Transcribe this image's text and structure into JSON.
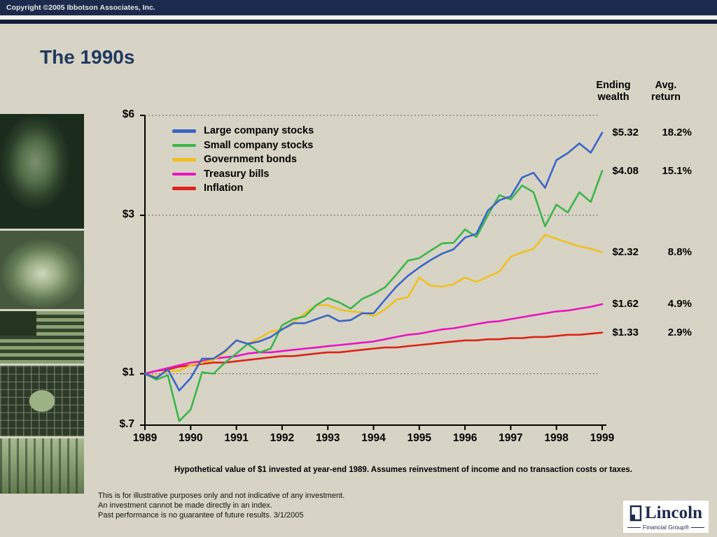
{
  "slide": {
    "copyright": "Copyright ©2005 Ibbotson Associates, Inc.",
    "title": "The 1990s",
    "stats_header": {
      "col1": [
        "Ending",
        "wealth"
      ],
      "col2": [
        "Avg.",
        "return"
      ]
    },
    "footnote": "Hypothetical value of $1 invested at year-end 1989. Assumes reinvestment of income and no transaction costs or taxes.",
    "disclaimer_lines": [
      "This is for illustrative purposes only and not indicative of any investment.",
      "An investment cannot be made directly in an index.",
      "Past performance is no guarantee of future results. 3/1/2005"
    ],
    "logo": {
      "name": "Lincoln",
      "sub": "Financial Group®"
    }
  },
  "chart_data": {
    "type": "line",
    "title": "The 1990s",
    "y_scale": "log",
    "ylim": [
      0.7,
      6
    ],
    "grid": "dotted horizontal at $6, $3, $1",
    "legend_position": "top-left inside plot",
    "y_ticks": [
      {
        "value": 6,
        "label": "$6",
        "grid": true
      },
      {
        "value": 3,
        "label": "$3",
        "grid": true
      },
      {
        "value": 1,
        "label": "$1",
        "grid": true
      },
      {
        "value": 0.7,
        "label": "$.7",
        "grid": false
      }
    ],
    "x_ticks": [
      "1989",
      "1990",
      "1991",
      "1992",
      "1993",
      "1994",
      "1995",
      "1996",
      "1997",
      "1998",
      "1999"
    ],
    "points_per_year": 4,
    "series": [
      {
        "name": "Large company stocks",
        "color": "#3a64c8",
        "ending_wealth": "$5.32",
        "avg_return": "18.2%",
        "values": [
          1.0,
          0.97,
          1.03,
          0.89,
          0.97,
          1.11,
          1.11,
          1.17,
          1.26,
          1.23,
          1.25,
          1.29,
          1.36,
          1.42,
          1.42,
          1.46,
          1.5,
          1.44,
          1.45,
          1.52,
          1.52,
          1.67,
          1.83,
          1.97,
          2.09,
          2.2,
          2.3,
          2.37,
          2.57,
          2.64,
          3.1,
          3.33,
          3.42,
          3.9,
          4.03,
          3.63,
          4.4,
          4.62,
          4.94,
          4.63,
          5.32
        ]
      },
      {
        "name": "Small company stocks",
        "color": "#3bb54a",
        "ending_wealth": "$4.08",
        "avg_return": "15.1%",
        "values": [
          1.0,
          0.96,
          0.99,
          0.72,
          0.78,
          1.01,
          1.0,
          1.08,
          1.15,
          1.23,
          1.16,
          1.19,
          1.4,
          1.46,
          1.49,
          1.61,
          1.69,
          1.64,
          1.57,
          1.68,
          1.74,
          1.82,
          1.99,
          2.19,
          2.23,
          2.35,
          2.47,
          2.48,
          2.72,
          2.58,
          3.0,
          3.45,
          3.35,
          3.69,
          3.52,
          2.78,
          3.23,
          3.06,
          3.52,
          3.29,
          4.08
        ]
      },
      {
        "name": "Government bonds",
        "color": "#f0c020",
        "ending_wealth": "$2.32",
        "avg_return": "8.8%",
        "values": [
          1.0,
          0.98,
          1.02,
          1.02,
          1.06,
          1.08,
          1.1,
          1.16,
          1.26,
          1.23,
          1.28,
          1.34,
          1.36,
          1.43,
          1.52,
          1.61,
          1.61,
          1.56,
          1.54,
          1.53,
          1.49,
          1.56,
          1.67,
          1.7,
          1.95,
          1.84,
          1.83,
          1.86,
          1.95,
          1.89,
          1.96,
          2.03,
          2.25,
          2.32,
          2.38,
          2.62,
          2.55,
          2.48,
          2.42,
          2.38,
          2.32
        ]
      },
      {
        "name": "Treasury bills",
        "color": "#ec13c3",
        "ending_wealth": "$1.62",
        "avg_return": "4.9%",
        "values": [
          1.0,
          1.02,
          1.04,
          1.06,
          1.08,
          1.09,
          1.11,
          1.12,
          1.13,
          1.15,
          1.16,
          1.16,
          1.17,
          1.18,
          1.19,
          1.2,
          1.21,
          1.22,
          1.23,
          1.24,
          1.25,
          1.27,
          1.29,
          1.31,
          1.32,
          1.34,
          1.36,
          1.37,
          1.39,
          1.41,
          1.43,
          1.44,
          1.46,
          1.48,
          1.5,
          1.52,
          1.54,
          1.55,
          1.57,
          1.59,
          1.62
        ]
      },
      {
        "name": "Inflation",
        "color": "#e02318",
        "ending_wealth": "$1.33",
        "avg_return": "2.9%",
        "values": [
          1.0,
          1.02,
          1.03,
          1.05,
          1.06,
          1.07,
          1.08,
          1.08,
          1.09,
          1.1,
          1.11,
          1.12,
          1.13,
          1.13,
          1.14,
          1.15,
          1.16,
          1.16,
          1.17,
          1.18,
          1.19,
          1.2,
          1.2,
          1.21,
          1.22,
          1.23,
          1.24,
          1.25,
          1.26,
          1.26,
          1.27,
          1.27,
          1.28,
          1.28,
          1.29,
          1.29,
          1.3,
          1.31,
          1.31,
          1.32,
          1.33
        ]
      }
    ]
  }
}
